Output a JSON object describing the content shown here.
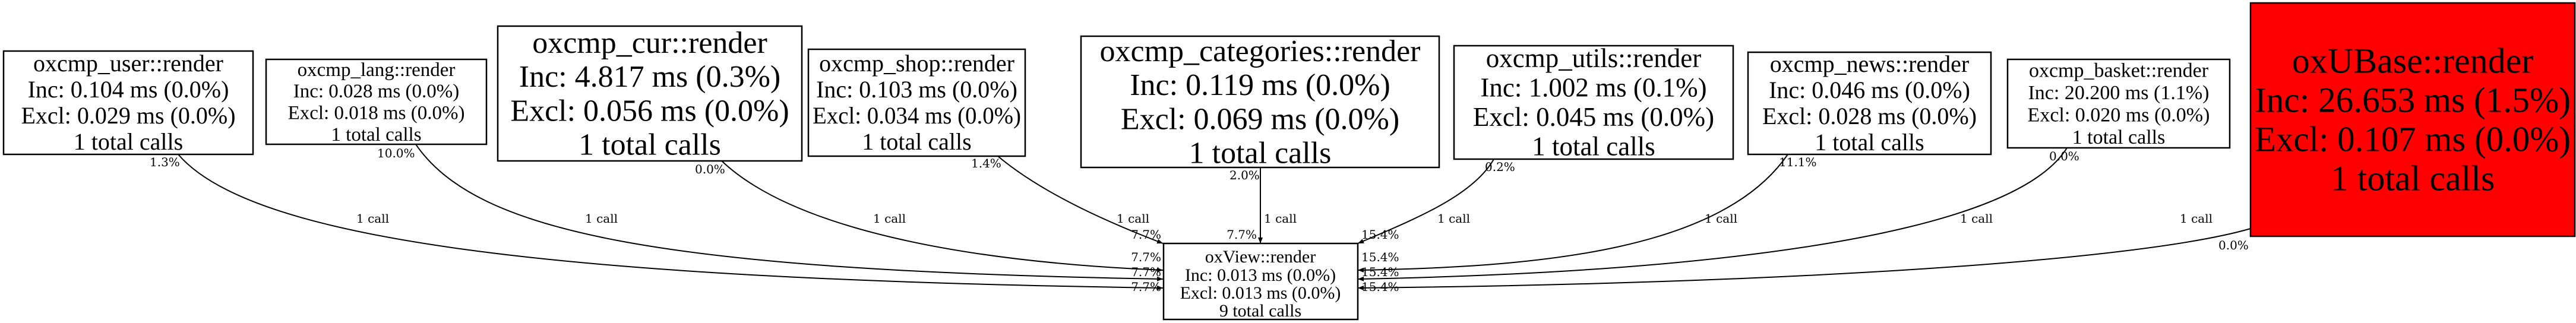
{
  "graph": {
    "target": {
      "title": "oxView::render",
      "inc": "Inc: 0.013 ms (0.0%)",
      "excl": "Excl: 0.013 ms (0.0%)",
      "calls": "9 total calls"
    },
    "nodes": [
      {
        "id": "user",
        "title": "oxcmp_user::render",
        "inc": "Inc: 0.104 ms (0.0%)",
        "excl": "Excl: 0.029 ms (0.0%)",
        "calls": "1 total calls",
        "fill": "#ffffff"
      },
      {
        "id": "lang",
        "title": "oxcmp_lang::render",
        "inc": "Inc: 0.028 ms (0.0%)",
        "excl": "Excl: 0.018 ms (0.0%)",
        "calls": "1 total calls",
        "fill": "#ffffff"
      },
      {
        "id": "cur",
        "title": "oxcmp_cur::render",
        "inc": "Inc: 4.817 ms (0.3%)",
        "excl": "Excl: 0.056 ms (0.0%)",
        "calls": "1 total calls",
        "fill": "#ffffff"
      },
      {
        "id": "shop",
        "title": "oxcmp_shop::render",
        "inc": "Inc: 0.103 ms (0.0%)",
        "excl": "Excl: 0.034 ms (0.0%)",
        "calls": "1 total calls",
        "fill": "#ffffff"
      },
      {
        "id": "categories",
        "title": "oxcmp_categories::render",
        "inc": "Inc: 0.119 ms (0.0%)",
        "excl": "Excl: 0.069 ms (0.0%)",
        "calls": "1 total calls",
        "fill": "#ffffff"
      },
      {
        "id": "utils",
        "title": "oxcmp_utils::render",
        "inc": "Inc: 1.002 ms (0.1%)",
        "excl": "Excl: 0.045 ms (0.0%)",
        "calls": "1 total calls",
        "fill": "#ffffff"
      },
      {
        "id": "news",
        "title": "oxcmp_news::render",
        "inc": "Inc: 0.046 ms (0.0%)",
        "excl": "Excl: 0.028 ms (0.0%)",
        "calls": "1 total calls",
        "fill": "#ffffff"
      },
      {
        "id": "basket",
        "title": "oxcmp_basket::render",
        "inc": "Inc: 20.200 ms (1.1%)",
        "excl": "Excl: 0.020 ms (0.0%)",
        "calls": "1 total calls",
        "fill": "#ffffff"
      },
      {
        "id": "oxubase",
        "title": "oxUBase::render",
        "inc": "Inc: 26.653 ms (1.5%)",
        "excl": "Excl: 0.107 ms (0.0%)",
        "calls": "1 total calls",
        "fill": "#ff0000"
      }
    ],
    "edges": [
      {
        "from": "user",
        "label": "1 call",
        "tail_pct": "1.3%",
        "head_pct": "7.7%"
      },
      {
        "from": "lang",
        "label": "1 call",
        "tail_pct": "10.0%",
        "head_pct": "7.7%"
      },
      {
        "from": "cur",
        "label": "1 call",
        "tail_pct": "0.0%",
        "head_pct": "7.7%"
      },
      {
        "from": "shop",
        "label": "1 call",
        "tail_pct": "1.4%",
        "head_pct": "7.7%"
      },
      {
        "from": "categories",
        "label": "1 call",
        "tail_pct": "2.0%",
        "head_pct": "7.7%"
      },
      {
        "from": "utils",
        "label": "1 call",
        "tail_pct": "0.2%",
        "head_pct": "15.4%"
      },
      {
        "from": "news",
        "label": "1 call",
        "tail_pct": "11.1%",
        "head_pct": "15.4%"
      },
      {
        "from": "basket",
        "label": "1 call",
        "tail_pct": "0.0%",
        "head_pct": "15.4%"
      },
      {
        "from": "oxubase",
        "label": "1 call",
        "tail_pct": "0.0%",
        "head_pct": "15.4%"
      }
    ]
  }
}
